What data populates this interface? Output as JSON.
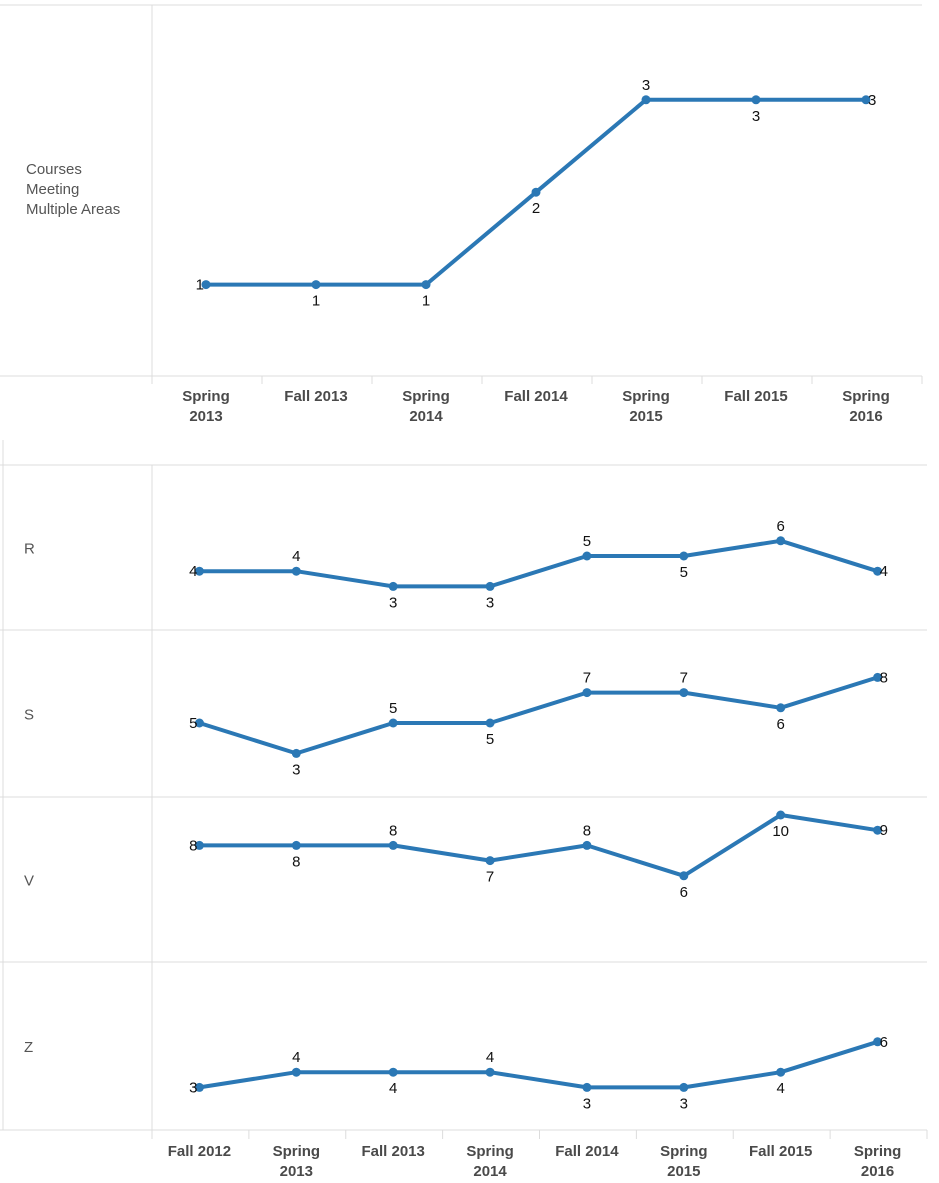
{
  "chart_data": [
    {
      "type": "line",
      "row_label": "Courses Meeting Multiple Areas",
      "categories": [
        "Spring 2013",
        "Fall 2013",
        "Spring 2014",
        "Fall 2014",
        "Spring 2015",
        "Fall 2015",
        "Spring 2016"
      ],
      "series": [
        {
          "values": [
            1,
            1,
            1,
            2,
            3,
            3,
            3
          ],
          "color": "#2b78b5"
        }
      ],
      "ylim": [
        0,
        4
      ],
      "grid": false
    },
    {
      "type": "line",
      "categories": [
        "Fall 2012",
        "Spring 2013",
        "Fall 2013",
        "Spring 2014",
        "Fall 2014",
        "Spring 2015",
        "Fall 2015",
        "Spring 2016"
      ],
      "panels": [
        {
          "row_label": "R",
          "values": [
            4,
            4,
            3,
            3,
            5,
            5,
            6,
            4
          ],
          "ylim": [
            0,
            10
          ]
        },
        {
          "row_label": "S",
          "values": [
            5,
            3,
            5,
            5,
            7,
            7,
            6,
            8
          ],
          "ylim": [
            0,
            10
          ]
        },
        {
          "row_label": "V",
          "values": [
            8,
            8,
            8,
            7,
            8,
            6,
            10,
            9
          ],
          "ylim": [
            0,
            10
          ]
        },
        {
          "row_label": "Z",
          "values": [
            3,
            4,
            4,
            4,
            3,
            3,
            4,
            6
          ],
          "ylim": [
            0,
            10
          ]
        }
      ],
      "color": "#2b78b5",
      "grid": false
    }
  ]
}
